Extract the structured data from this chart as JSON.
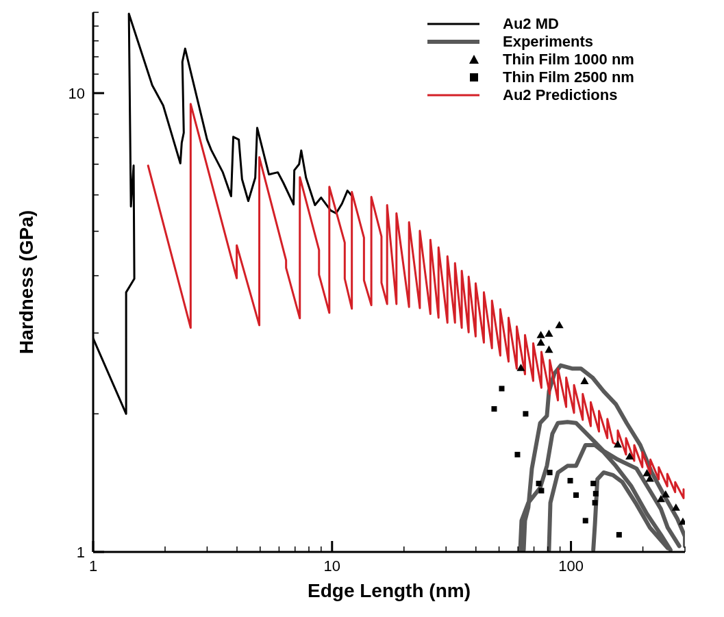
{
  "chart_data": {
    "type": "line",
    "xlabel": "Edge Length (nm)",
    "ylabel": "Hardness (GPa)",
    "log": "xy",
    "legend": "top right",
    "xlim": [
      1,
      300
    ],
    "ylim": [
      1,
      15
    ],
    "xticks": [
      1,
      {
        "value": 2,
        "label": null
      },
      {
        "value": 3,
        "label": null
      },
      {
        "value": 4,
        "label": null
      },
      {
        "value": 5,
        "label": null
      },
      {
        "value": 6,
        "label": null
      },
      {
        "value": 7,
        "label": null
      },
      {
        "value": 8,
        "label": null
      },
      {
        "value": 9,
        "label": null
      },
      10,
      {
        "value": 20,
        "label": null
      },
      {
        "value": 30,
        "label": null
      },
      {
        "value": 40,
        "label": null
      },
      {
        "value": 50,
        "label": null
      },
      {
        "value": 60,
        "label": null
      },
      {
        "value": 70,
        "label": null
      },
      {
        "value": 80,
        "label": null
      },
      {
        "value": 90,
        "label": null
      },
      100,
      {
        "value": 200,
        "label": null
      },
      {
        "value": 300,
        "label": null
      }
    ],
    "yticks": [
      1,
      {
        "value": 2,
        "label": null
      },
      {
        "value": 3,
        "label": null
      },
      {
        "value": 4,
        "label": null
      },
      {
        "value": 5,
        "label": null
      },
      {
        "value": 6,
        "label": null
      },
      {
        "value": 7,
        "label": null
      },
      {
        "value": 8,
        "label": null
      },
      {
        "value": 9,
        "label": null
      },
      10,
      {
        "value": 11,
        "label": null
      },
      {
        "value": 12,
        "label": null
      },
      {
        "value": 13,
        "label": null
      },
      {
        "value": 14,
        "label": null
      },
      {
        "value": 15,
        "label": null
      }
    ],
    "series": [
      {
        "name": "Au2 MD",
        "color": "#000000",
        "marker": "none",
        "x": [
          1.0,
          1.374,
          1.374,
          1.487,
          1.477,
          1.439,
          1.411,
          1.767,
          1.964,
          2.317,
          2.348,
          2.395,
          2.363,
          2.427,
          2.999,
          3.12,
          3.49,
          3.78,
          3.86,
          4.07,
          4.2,
          4.46,
          4.77,
          4.86,
          5.44,
          5.93,
          6.25,
          6.9,
          6.95,
          7.28,
          7.43,
          7.78,
          8.48,
          9.0,
          9.87,
          10.4,
          11.0,
          11.6,
          12.2
        ],
        "values": [
          2.92,
          2.0,
          3.68,
          3.94,
          6.95,
          5.66,
          14.9,
          10.4,
          9.4,
          7.03,
          7.79,
          8.2,
          11.7,
          12.5,
          7.92,
          7.52,
          6.72,
          5.96,
          8.03,
          7.92,
          6.49,
          5.82,
          6.54,
          8.4,
          6.65,
          6.72,
          6.38,
          5.72,
          6.79,
          7.0,
          7.5,
          6.54,
          5.7,
          5.92,
          5.55,
          5.47,
          5.74,
          6.13,
          5.94
        ]
      },
      {
        "name": "Experiments",
        "color": "#595959",
        "marker": "none",
        "x": [
          63.4,
          64.2,
          66.3,
          68.6,
          74.3,
          79.3,
          80.9,
          85.3,
          90.6,
          101,
          110,
          123,
          137,
          154,
          171,
          195,
          218,
          249,
          279,
          300,
          300,
          null,
          61.3,
          62.1,
          66.3,
          74.3,
          79.3,
          83.6,
          88.2,
          96.7,
          105,
          120,
          137,
          157,
          188,
          214,
          238,
          254,
          284,
          null,
          80.9,
          82.0,
          88.2,
          96.7,
          105,
          115,
          126,
          137,
          154,
          179,
          208,
          238,
          261,
          null,
          124,
          126,
          129,
          137,
          150,
          164,
          188,
          214,
          254
        ],
        "values": [
          1.01,
          1.17,
          1.25,
          1.52,
          1.91,
          1.98,
          2.24,
          2.45,
          2.55,
          2.51,
          2.51,
          2.4,
          2.24,
          2.1,
          1.91,
          1.71,
          1.49,
          1.31,
          1.18,
          1.08,
          1.03,
          null,
          1.01,
          1.17,
          1.28,
          1.38,
          1.54,
          1.81,
          1.91,
          1.92,
          1.91,
          1.78,
          1.66,
          1.59,
          1.52,
          1.36,
          1.24,
          1.13,
          1.03,
          null,
          1.01,
          1.28,
          1.49,
          1.54,
          1.54,
          1.71,
          1.71,
          1.65,
          1.54,
          1.39,
          1.21,
          1.09,
          1.01,
          null,
          1.01,
          1.15,
          1.44,
          1.49,
          1.47,
          1.42,
          1.27,
          1.13,
          1.02
        ]
      },
      {
        "name": "Thin Film 1000 nm",
        "type": "scatter",
        "color": "#000000",
        "marker": "triangle",
        "x": [
          89.4,
          74.8,
          80.9,
          74.8,
          80.9,
          61.7,
          114,
          157,
          176,
          208,
          214,
          249,
          238,
          275,
          294
        ],
        "values": [
          3.11,
          2.96,
          2.98,
          2.85,
          2.75,
          2.51,
          2.35,
          1.71,
          1.61,
          1.48,
          1.44,
          1.33,
          1.3,
          1.245,
          1.16
        ]
      },
      {
        "name": "Thin Film 2500 nm",
        "type": "scatter",
        "color": "#000000",
        "marker": "square",
        "x": [
          51.3,
          47.7,
          64.6,
          59.7,
          81.5,
          73.3,
          75.2,
          99.3,
          105,
          124,
          127,
          126,
          115,
          159
        ],
        "values": [
          2.27,
          2.05,
          2.0,
          1.63,
          1.49,
          1.41,
          1.36,
          1.43,
          1.33,
          1.41,
          1.34,
          1.28,
          1.17,
          1.09
        ]
      },
      {
        "name": "Au2 Predictions",
        "color": "#d42027",
        "marker": "none",
        "x": [
          1.698,
          2.559,
          2.559,
          3.99,
          3.99,
          4.96,
          4.96,
          6.42,
          6.42,
          7.33,
          7.33,
          8.82,
          8.82,
          9.74,
          9.74,
          11.3,
          11.3,
          12.1,
          12.1,
          13.6,
          13.6,
          14.6,
          14.6,
          16.1,
          16.1,
          17.0,
          17.0,
          18.6,
          18.6,
          21.0,
          21.0,
          23.3,
          23.3,
          25.8,
          25.8,
          27.9,
          27.9,
          30.4,
          30.4,
          32.7,
          32.7,
          34.9,
          34.9,
          37.3,
          37.3,
          39.9,
          39.9,
          43.2,
          43.2,
          46.7,
          46.7,
          50.6,
          50.6,
          54.8,
          54.8,
          59.3,
          59.3,
          64.2,
          64.2,
          69.5,
          69.5,
          75.2,
          75.2,
          81.5,
          81.5,
          88.2,
          88.2,
          95.5,
          95.5,
          103,
          103,
          112,
          112,
          121,
          121,
          131,
          131,
          142,
          142,
          150,
          157,
          157,
          170,
          170,
          184,
          184,
          199,
          199,
          215,
          215,
          233,
          233,
          253,
          253,
          273,
          273,
          296,
          296
        ],
        "values": [
          6.95,
          3.08,
          9.47,
          3.95,
          4.66,
          3.12,
          7.25,
          4.32,
          4.16,
          3.23,
          6.56,
          4.55,
          4.02,
          3.32,
          6.25,
          4.72,
          3.94,
          3.39,
          6.09,
          4.84,
          3.91,
          3.45,
          5.94,
          4.87,
          3.86,
          3.47,
          5.7,
          3.47,
          5.47,
          3.42,
          5.23,
          3.4,
          5.01,
          3.3,
          4.79,
          3.24,
          4.61,
          3.16,
          4.41,
          3.16,
          4.26,
          3.08,
          4.1,
          3.01,
          3.98,
          2.95,
          3.85,
          2.86,
          3.68,
          2.78,
          3.53,
          2.68,
          3.38,
          2.6,
          3.24,
          2.51,
          3.1,
          2.44,
          2.97,
          2.36,
          2.85,
          2.28,
          2.73,
          2.21,
          2.62,
          2.14,
          2.51,
          2.07,
          2.4,
          2.01,
          2.31,
          1.94,
          2.21,
          1.88,
          2.12,
          1.83,
          2.03,
          1.77,
          1.95,
          1.73,
          1.71,
          1.84,
          1.63,
          1.77,
          1.58,
          1.71,
          1.53,
          1.65,
          1.48,
          1.59,
          1.44,
          1.53,
          1.39,
          1.48,
          1.35,
          1.42,
          1.31,
          1.37
        ]
      }
    ]
  }
}
